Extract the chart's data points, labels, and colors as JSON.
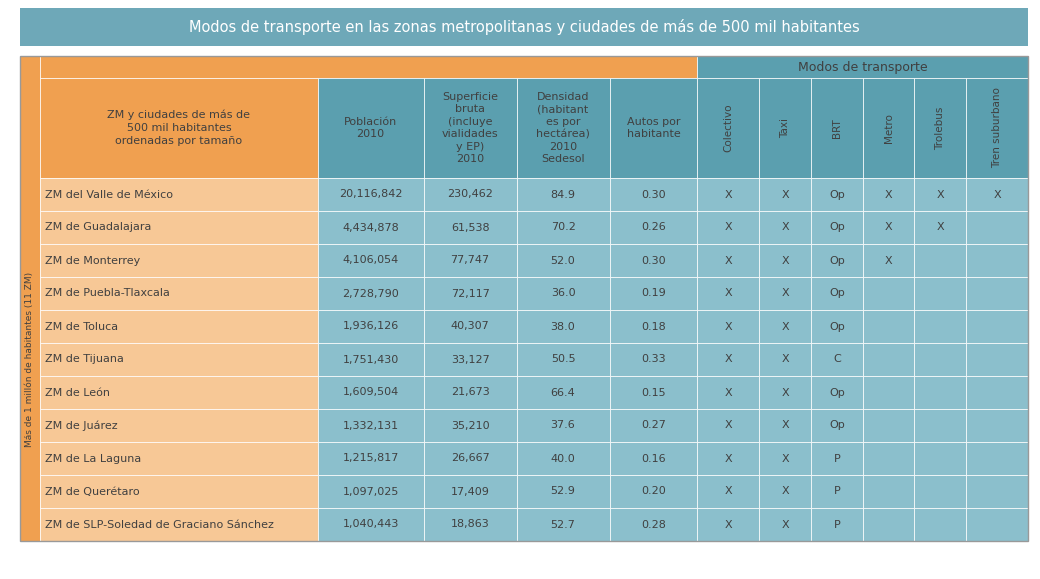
{
  "title": "Modos de transporte en las zonas metropolitanas y ciudades de más de 500 mil habitantes",
  "title_bg": "#6ea8b8",
  "title_color": "#ffffff",
  "header_bg_orange": "#f0a050",
  "header_bg_teal": "#5b9faf",
  "data_bg_orange_light": "#f7c896",
  "data_bg_teal_light": "#8bbfcc",
  "sidebar_label": "Más de 1 millón de habitantes (11 ZM)",
  "modos_header": "Modos de transporte",
  "rows": [
    [
      "ZM del Valle de México",
      "20,116,842",
      "230,462",
      "84.9",
      "0.30",
      "X",
      "X",
      "Op",
      "X",
      "X",
      "X"
    ],
    [
      "ZM de Guadalajara",
      "4,434,878",
      "61,538",
      "70.2",
      "0.26",
      "X",
      "X",
      "Op",
      "X",
      "X",
      ""
    ],
    [
      "ZM de Monterrey",
      "4,106,054",
      "77,747",
      "52.0",
      "0.30",
      "X",
      "X",
      "Op",
      "X",
      "",
      ""
    ],
    [
      "ZM de Puebla-Tlaxcala",
      "2,728,790",
      "72,117",
      "36.0",
      "0.19",
      "X",
      "X",
      "Op",
      "",
      "",
      ""
    ],
    [
      "ZM de Toluca",
      "1,936,126",
      "40,307",
      "38.0",
      "0.18",
      "X",
      "X",
      "Op",
      "",
      "",
      ""
    ],
    [
      "ZM de Tijuana",
      "1,751,430",
      "33,127",
      "50.5",
      "0.33",
      "X",
      "X",
      "C",
      "",
      "",
      ""
    ],
    [
      "ZM de León",
      "1,609,504",
      "21,673",
      "66.4",
      "0.15",
      "X",
      "X",
      "Op",
      "",
      "",
      ""
    ],
    [
      "ZM de Juárez",
      "1,332,131",
      "35,210",
      "37.6",
      "0.27",
      "X",
      "X",
      "Op",
      "",
      "",
      ""
    ],
    [
      "ZM de La Laguna",
      "1,215,817",
      "26,667",
      "40.0",
      "0.16",
      "X",
      "X",
      "P",
      "",
      "",
      ""
    ],
    [
      "ZM de Querétaro",
      "1,097,025",
      "17,409",
      "52.9",
      "0.20",
      "X",
      "X",
      "P",
      "",
      "",
      ""
    ],
    [
      "ZM de SLP-Soledad de Graciano Sánchez",
      "1,040,443",
      "18,863",
      "52.7",
      "0.28",
      "X",
      "X",
      "P",
      "",
      "",
      ""
    ]
  ],
  "text_color_dark": "#404040",
  "text_color_white": "#ffffff",
  "font_size_title": 10.5,
  "font_size_header": 8,
  "font_size_data": 8,
  "font_size_sidebar": 6.5,
  "fig_w": 10.4,
  "fig_h": 5.79,
  "dpi": 100
}
